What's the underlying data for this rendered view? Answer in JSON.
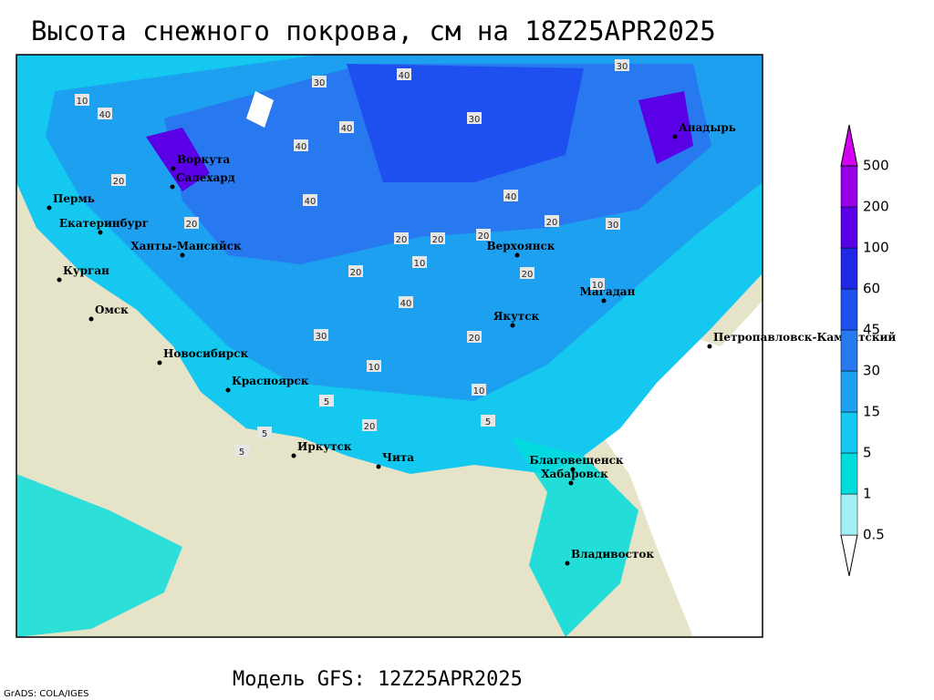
{
  "title": "Высота снежного покрова, см на 18Z25APR2025",
  "footer": "Модель GFS: 12Z25APR2025",
  "credit": "GrADS: COLA/IGES",
  "cities": [
    "Пермь",
    "Екатеринбург",
    "Ханты-Мансийск",
    "Курган",
    "Омск",
    "Новосибирск",
    "Красноярск",
    "Иркутск",
    "Чита",
    "Благовещенск",
    "Хабаровск",
    "Владивосток",
    "Якутск",
    "Верхоянск",
    "Магадан",
    "Петропавловск-Камчатский",
    "Воркута",
    "Салехард",
    "Анадырь"
  ],
  "contour_labels": [
    10,
    30,
    40,
    30,
    30,
    40,
    40,
    20,
    20,
    20,
    40,
    20,
    20,
    30,
    10,
    40,
    20,
    20,
    10,
    30,
    20,
    10,
    5,
    20,
    5,
    5,
    10,
    5,
    20,
    40,
    40
  ],
  "colorbar": {
    "levels": [
      0.5,
      1,
      5,
      15,
      30,
      45,
      60,
      100,
      200,
      500
    ],
    "colors": [
      "#ffffff",
      "#a0f0f5",
      "#00dcdc",
      "#14c8f0",
      "#1ea0f0",
      "#2878f0",
      "#1e50f0",
      "#1e28e6",
      "#5a00e6",
      "#9600e6",
      "#d200f0"
    ]
  }
}
